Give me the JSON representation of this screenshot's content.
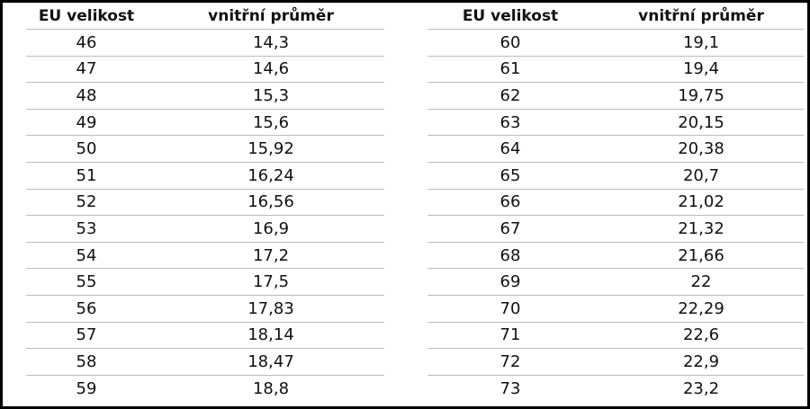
{
  "tables": [
    {
      "headers": [
        "EU velikost",
        "vnitřní průměr"
      ],
      "rows": [
        [
          "46",
          "14,3"
        ],
        [
          "47",
          "14,6"
        ],
        [
          "48",
          "15,3"
        ],
        [
          "49",
          "15,6"
        ],
        [
          "50",
          "15,92"
        ],
        [
          "51",
          "16,24"
        ],
        [
          "52",
          "16,56"
        ],
        [
          "53",
          "16,9"
        ],
        [
          "54",
          "17,2"
        ],
        [
          "55",
          "17,5"
        ],
        [
          "56",
          "17,83"
        ],
        [
          "57",
          "18,14"
        ],
        [
          "58",
          "18,47"
        ],
        [
          "59",
          "18,8"
        ]
      ]
    },
    {
      "headers": [
        "EU velikost",
        "vnitřní průměr"
      ],
      "rows": [
        [
          "60",
          "19,1"
        ],
        [
          "61",
          "19,4"
        ],
        [
          "62",
          "19,75"
        ],
        [
          "63",
          "20,15"
        ],
        [
          "64",
          "20,38"
        ],
        [
          "65",
          "20,7"
        ],
        [
          "66",
          "21,02"
        ],
        [
          "67",
          "21,32"
        ],
        [
          "68",
          "21,66"
        ],
        [
          "69",
          "22"
        ],
        [
          "70",
          "22,29"
        ],
        [
          "71",
          "22,6"
        ],
        [
          "72",
          "22,9"
        ],
        [
          "73",
          "23,2"
        ]
      ]
    }
  ]
}
